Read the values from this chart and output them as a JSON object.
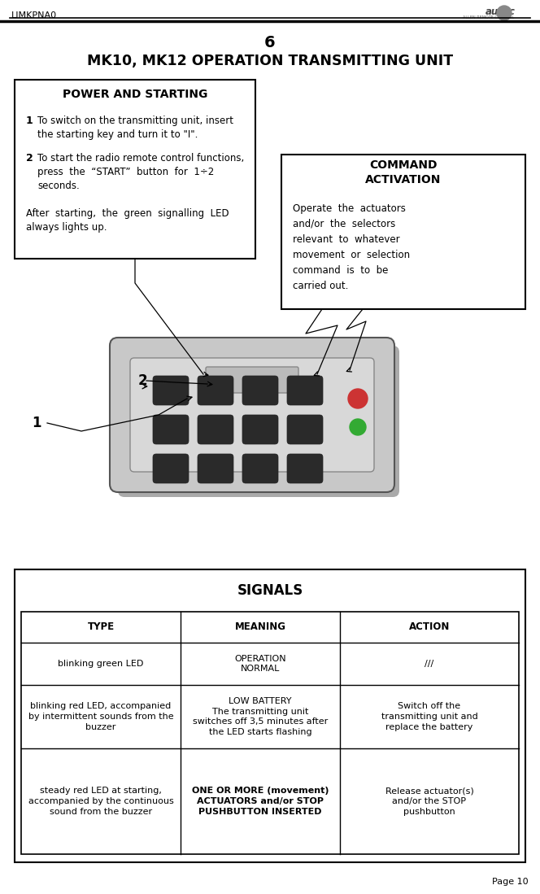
{
  "page_title_number": "6",
  "page_title": "MK10, MK12 OPERATION TRANSMITTING UNIT",
  "header_left": "LIMKPNA0",
  "footer_right": "Page 10",
  "power_box_title": "POWER AND STARTING",
  "command_box_title": "COMMAND\nACTIVATION",
  "command_box_text_lines": [
    "Operate  the  actuators",
    "and/or  the  selectors",
    "relevant  to  whatever",
    "movement  or  selection",
    "command  is  to  be",
    "carried out."
  ],
  "signals_title": "SIGNALS",
  "table_headers": [
    "TYPE",
    "MEANING",
    "ACTION"
  ],
  "table_row1_col1": "blinking green LED",
  "table_row1_col2": "OPERATION\nNORMAL",
  "table_row1_col3": "///",
  "table_row2_col1": "blinking red LED, accompanied\nby intermittent sounds from the\nbuzzer",
  "table_row2_col2": "LOW BATTERY\nThe transmitting unit\nswitches off 3,5 minutes after\nthe LED starts flashing",
  "table_row2_col3": "Switch off the\ntransmitting unit and\nreplace the battery",
  "table_row3_col1": "steady red LED at starting,\naccompanied by the continuous\nsound from the buzzer",
  "table_row3_col2": "ONE OR MORE (movement)\nACTUATORS and/or STOP\nPUSHBUTTON INSERTED",
  "table_row3_col3": "Release actuator(s)\nand/or the STOP\npushbutton",
  "bg_color": "#ffffff",
  "text_color": "#000000",
  "fig_width": 6.64,
  "fig_height": 10.99,
  "dpi": 100
}
